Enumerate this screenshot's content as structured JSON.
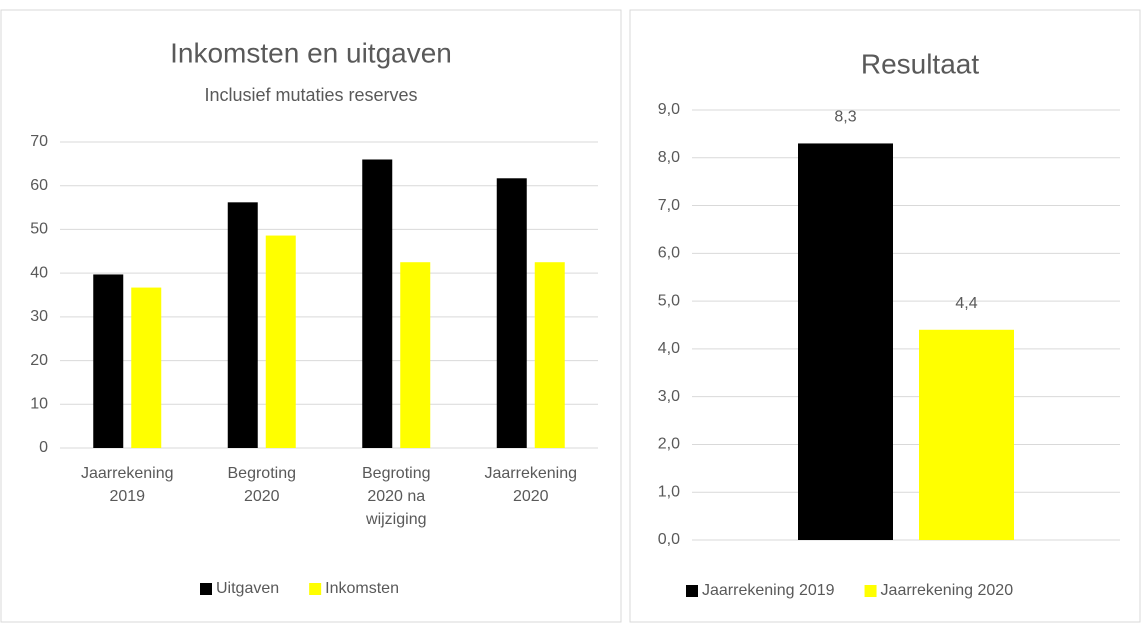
{
  "chart_data": [
    {
      "type": "bar",
      "title": "Inkomsten en uitgaven",
      "subtitle": "Inclusief mutaties reserves",
      "categories": [
        "Jaarrekening 2019",
        "Begroting 2020",
        "Begroting 2020 na wijziging",
        "Jaarrekening 2020"
      ],
      "series": [
        {
          "name": "Uitgaven",
          "color": "#000000",
          "values": [
            39.7,
            56.2,
            66,
            61.7
          ]
        },
        {
          "name": "Inkomsten",
          "color": "#ffff00",
          "values": [
            36.7,
            48.6,
            42.5,
            42.5
          ]
        }
      ],
      "ylim": [
        0,
        70
      ],
      "yticks": [
        0,
        10,
        20,
        30,
        40,
        50,
        60,
        70
      ],
      "grid": true,
      "legend": "bottom"
    },
    {
      "type": "bar",
      "title": "Resultaat",
      "series": [
        {
          "name": "Jaarrekening 2019",
          "color": "#000000",
          "values": [
            8.3
          ],
          "value_labels": [
            "8,3"
          ]
        },
        {
          "name": "Jaarrekening 2020",
          "color": "#ffff00",
          "values": [
            4.4
          ],
          "value_labels": [
            "4,4"
          ]
        }
      ],
      "ylim": [
        0,
        9
      ],
      "yticks": [
        {
          "value": 0,
          "label": "0,0"
        },
        {
          "value": 1,
          "label": "1,0"
        },
        {
          "value": 2,
          "label": "2,0"
        },
        {
          "value": 3,
          "label": "3,0"
        },
        {
          "value": 4,
          "label": "4,0"
        },
        {
          "value": 5,
          "label": "5,0"
        },
        {
          "value": 6,
          "label": "6,0"
        },
        {
          "value": 7,
          "label": "7,0"
        },
        {
          "value": 8,
          "label": "8,0"
        },
        {
          "value": 9,
          "label": "9,0"
        }
      ],
      "grid": true,
      "legend": "bottom"
    }
  ]
}
